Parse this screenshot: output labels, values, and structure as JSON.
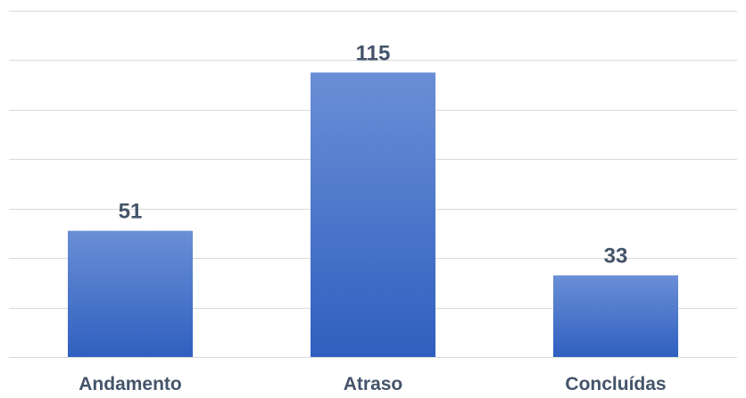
{
  "chart_data": {
    "type": "bar",
    "categories": [
      "Andamento",
      "Atraso",
      "Concluídas"
    ],
    "values": [
      51,
      115,
      33
    ],
    "ylim": [
      0,
      140
    ],
    "grid": true,
    "legend": "none",
    "title": "",
    "xlabel": "",
    "ylabel": "",
    "data_labels": [
      "51",
      "115",
      "33"
    ]
  },
  "colors": {
    "bar_top": "#6a8fd6",
    "bar_bottom": "#2f5fbf",
    "gridline": "#d9d9d9",
    "text": "#44546a"
  }
}
